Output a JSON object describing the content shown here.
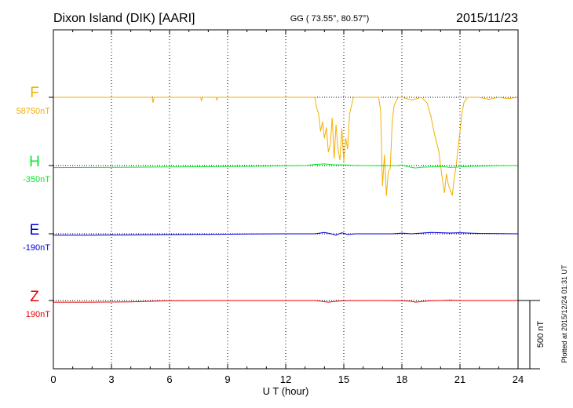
{
  "header": {
    "station": "Dixon Island (DIK)  [AARI]",
    "coords": "GG ( 73.55°,  80.57°)",
    "date": "2015/11/23"
  },
  "footer_note": "Plotted at 2015/12/24 01:31  UT",
  "chart_data": {
    "type": "line",
    "xlabel": "U T (hour)",
    "xlim": [
      0,
      24
    ],
    "xticks": [
      0,
      3,
      6,
      9,
      12,
      15,
      18,
      21,
      24
    ],
    "grid": "dotted vertical lines every 3 hours; dotted baseline per trace",
    "scale_bar": {
      "label": "500 nT",
      "value": 500
    },
    "series": [
      {
        "name": "F",
        "baseline_label": "58750nT",
        "color": "#f5b000",
        "baseline": 58750,
        "x": [
          0,
          5.1,
          5.15,
          5.2,
          6,
          7.6,
          7.65,
          7.7,
          8.4,
          8.45,
          8.5,
          10,
          13.5,
          13.6,
          13.7,
          13.8,
          13.9,
          14.0,
          14.1,
          14.2,
          14.3,
          14.4,
          14.5,
          14.6,
          14.7,
          14.8,
          14.9,
          15.0,
          15.1,
          15.2,
          15.3,
          15.5,
          16.0,
          16.5,
          16.8,
          16.9,
          17.0,
          17.1,
          17.2,
          17.3,
          17.4,
          17.5,
          17.6,
          17.8,
          18.0,
          18.5,
          19.0,
          19.3,
          19.5,
          19.7,
          19.9,
          20.0,
          20.1,
          20.2,
          20.3,
          20.4,
          20.5,
          20.6,
          20.7,
          20.8,
          20.9,
          21.0,
          21.1,
          21.2,
          21.4,
          22.0,
          22.5,
          23.0,
          23.5,
          24
        ],
        "values": [
          0,
          0,
          -40,
          0,
          0,
          0,
          -25,
          0,
          0,
          -20,
          0,
          0,
          0,
          -80,
          -120,
          -250,
          -180,
          -300,
          -220,
          -400,
          -350,
          -150,
          -450,
          -200,
          -380,
          -460,
          -230,
          -470,
          -300,
          -380,
          -120,
          0,
          0,
          0,
          0,
          -100,
          -650,
          -420,
          -720,
          -540,
          -520,
          -180,
          -60,
          0,
          0,
          -20,
          0,
          -40,
          -140,
          -280,
          -390,
          -500,
          -610,
          -700,
          -560,
          -640,
          -680,
          -720,
          -600,
          -500,
          -380,
          -250,
          -120,
          -40,
          0,
          0,
          -15,
          0,
          -10,
          0
        ]
      },
      {
        "name": "H",
        "baseline_label": "-350nT",
        "color": "#00ee22",
        "baseline": -350,
        "x": [
          0,
          2,
          4,
          6,
          8,
          10,
          11,
          12,
          13,
          13.5,
          14.0,
          14.5,
          15.0,
          15.5,
          16,
          17,
          17.8,
          18.0,
          18.3,
          18.7,
          19.0,
          19.5,
          20.0,
          20.5,
          21.0,
          21.5,
          22,
          23,
          24
        ],
        "values": [
          -15,
          -14,
          -12,
          -10,
          -8,
          -6,
          -4,
          -2,
          0,
          8,
          12,
          6,
          5,
          2,
          0,
          -2,
          0,
          5,
          -8,
          -18,
          -12,
          -10,
          -6,
          -14,
          -10,
          -6,
          -4,
          -2,
          0
        ]
      },
      {
        "name": "E",
        "baseline_label": "-190nT",
        "color": "#0000dd",
        "baseline": -190,
        "x": [
          0,
          2,
          4,
          6,
          8,
          10,
          12,
          13.5,
          14.0,
          14.3,
          14.6,
          14.9,
          15.2,
          15.6,
          16.5,
          17.5,
          18.0,
          18.5,
          19.0,
          19.5,
          20.0,
          20.5,
          21.0,
          21.5,
          22.0,
          23.0,
          24
        ],
        "values": [
          -10,
          -10,
          -8,
          -6,
          -4,
          -2,
          0,
          0,
          10,
          2,
          -10,
          8,
          -5,
          0,
          0,
          0,
          5,
          0,
          5,
          10,
          8,
          6,
          8,
          5,
          3,
          2,
          0
        ]
      },
      {
        "name": "Z",
        "baseline_label": "190nT",
        "color": "#ee0000",
        "baseline": 190,
        "x": [
          0,
          2,
          4,
          5,
          6,
          8,
          10,
          12,
          13.5,
          13.8,
          14.2,
          14.6,
          15.0,
          16,
          17,
          18.0,
          18.5,
          18.7,
          19.0,
          19.5,
          20.0,
          20.5,
          21.0,
          22,
          23,
          24
        ],
        "values": [
          -12,
          -12,
          -10,
          -6,
          -2,
          0,
          0,
          0,
          0,
          -5,
          -12,
          -6,
          -2,
          0,
          0,
          -2,
          -6,
          -12,
          -8,
          -2,
          0,
          3,
          0,
          0,
          0,
          0
        ]
      }
    ]
  }
}
